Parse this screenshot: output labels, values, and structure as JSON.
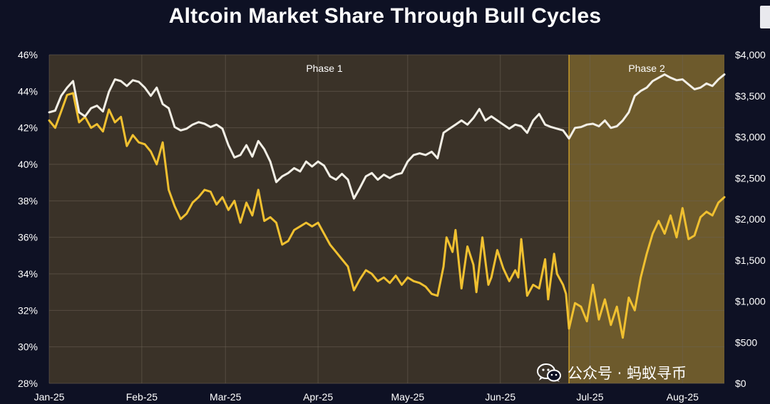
{
  "title": "Altcoin Market Share Through Bull Cycles",
  "watermark": {
    "text": "公众号 · 蚂蚁寻币",
    "icon": "wechat-icon"
  },
  "colors": {
    "background": "#0e1124",
    "plot_background": "#3a3228",
    "phase2_background": "#6d5a2c",
    "phase2_border": "#c89b2a",
    "grid": "#6b6356",
    "altcoin_share_line": "#f0c030",
    "price_line": "#f2efe6"
  },
  "chart_data": {
    "type": "line",
    "title": "Altcoin Market Share Through Bull Cycles",
    "x_axis": {
      "tick_labels": [
        "Jan-25",
        "Feb-25",
        "Mar-25",
        "Apr-25",
        "May-25",
        "Jun-25",
        "Jul-25",
        "Aug-25"
      ],
      "range": [
        "2025-01-01",
        "2025-08-15"
      ]
    },
    "y_left": {
      "tick_labels": [
        "28%",
        "30%",
        "32%",
        "34%",
        "36%",
        "38%",
        "40%",
        "42%",
        "44%",
        "46%"
      ],
      "range": [
        28,
        46
      ]
    },
    "y_right": {
      "tick_labels": [
        "$0",
        "$500",
        "$1,000",
        "$1,500",
        "$2,000",
        "$2,500",
        "$3,000",
        "$3,500",
        "$4,000"
      ],
      "range": [
        0,
        4000
      ]
    },
    "grid": true,
    "phases": [
      {
        "label": "Phase 1",
        "start": "2025-01-01",
        "end": "2025-06-24"
      },
      {
        "label": "Phase 2",
        "start": "2025-06-24",
        "end": "2025-08-15"
      }
    ],
    "series": [
      {
        "axis": "left",
        "color": "#f0c030",
        "points": [
          [
            "2025-01-01",
            42.4
          ],
          [
            "2025-01-03",
            42.0
          ],
          [
            "2025-01-05",
            42.9
          ],
          [
            "2025-01-07",
            43.8
          ],
          [
            "2025-01-09",
            43.9
          ],
          [
            "2025-01-11",
            42.3
          ],
          [
            "2025-01-13",
            42.6
          ],
          [
            "2025-01-15",
            42.0
          ],
          [
            "2025-01-17",
            42.2
          ],
          [
            "2025-01-19",
            41.8
          ],
          [
            "2025-01-21",
            43.0
          ],
          [
            "2025-01-23",
            42.3
          ],
          [
            "2025-01-25",
            42.6
          ],
          [
            "2025-01-27",
            41.0
          ],
          [
            "2025-01-29",
            41.6
          ],
          [
            "2025-01-31",
            41.2
          ],
          [
            "2025-02-02",
            41.1
          ],
          [
            "2025-02-04",
            40.7
          ],
          [
            "2025-02-06",
            40.0
          ],
          [
            "2025-02-08",
            41.2
          ],
          [
            "2025-02-10",
            38.6
          ],
          [
            "2025-02-12",
            37.7
          ],
          [
            "2025-02-14",
            37.0
          ],
          [
            "2025-02-16",
            37.3
          ],
          [
            "2025-02-18",
            37.9
          ],
          [
            "2025-02-20",
            38.2
          ],
          [
            "2025-02-22",
            38.6
          ],
          [
            "2025-02-24",
            38.5
          ],
          [
            "2025-02-26",
            37.8
          ],
          [
            "2025-02-28",
            38.2
          ],
          [
            "2025-03-02",
            37.5
          ],
          [
            "2025-03-04",
            38.0
          ],
          [
            "2025-03-06",
            36.8
          ],
          [
            "2025-03-08",
            37.9
          ],
          [
            "2025-03-10",
            37.2
          ],
          [
            "2025-03-12",
            38.6
          ],
          [
            "2025-03-14",
            36.9
          ],
          [
            "2025-03-16",
            37.1
          ],
          [
            "2025-03-18",
            36.8
          ],
          [
            "2025-03-20",
            35.6
          ],
          [
            "2025-03-22",
            35.8
          ],
          [
            "2025-03-24",
            36.4
          ],
          [
            "2025-03-26",
            36.6
          ],
          [
            "2025-03-28",
            36.8
          ],
          [
            "2025-03-30",
            36.6
          ],
          [
            "2025-04-01",
            36.8
          ],
          [
            "2025-04-03",
            36.2
          ],
          [
            "2025-04-05",
            35.6
          ],
          [
            "2025-04-07",
            35.2
          ],
          [
            "2025-04-09",
            34.8
          ],
          [
            "2025-04-11",
            34.4
          ],
          [
            "2025-04-13",
            33.1
          ],
          [
            "2025-04-15",
            33.7
          ],
          [
            "2025-04-17",
            34.2
          ],
          [
            "2025-04-19",
            34.0
          ],
          [
            "2025-04-21",
            33.6
          ],
          [
            "2025-04-23",
            33.8
          ],
          [
            "2025-04-25",
            33.5
          ],
          [
            "2025-04-27",
            33.9
          ],
          [
            "2025-04-29",
            33.4
          ],
          [
            "2025-05-01",
            33.8
          ],
          [
            "2025-05-03",
            33.6
          ],
          [
            "2025-05-05",
            33.5
          ],
          [
            "2025-05-07",
            33.3
          ],
          [
            "2025-05-09",
            32.9
          ],
          [
            "2025-05-11",
            32.8
          ],
          [
            "2025-05-13",
            34.4
          ],
          [
            "2025-05-14",
            36.0
          ],
          [
            "2025-05-16",
            35.2
          ],
          [
            "2025-05-17",
            36.4
          ],
          [
            "2025-05-19",
            33.2
          ],
          [
            "2025-05-21",
            35.5
          ],
          [
            "2025-05-23",
            34.5
          ],
          [
            "2025-05-24",
            33.0
          ],
          [
            "2025-05-26",
            36.0
          ],
          [
            "2025-05-28",
            33.4
          ],
          [
            "2025-05-29",
            33.8
          ],
          [
            "2025-05-31",
            35.3
          ],
          [
            "2025-06-02",
            34.3
          ],
          [
            "2025-06-04",
            33.6
          ],
          [
            "2025-06-06",
            34.2
          ],
          [
            "2025-06-07",
            33.8
          ],
          [
            "2025-06-08",
            35.9
          ],
          [
            "2025-06-10",
            32.8
          ],
          [
            "2025-06-12",
            33.4
          ],
          [
            "2025-06-14",
            33.2
          ],
          [
            "2025-06-16",
            34.8
          ],
          [
            "2025-06-17",
            32.6
          ],
          [
            "2025-06-19",
            35.1
          ],
          [
            "2025-06-20",
            34.0
          ],
          [
            "2025-06-22",
            33.4
          ],
          [
            "2025-06-23",
            32.9
          ],
          [
            "2025-06-24",
            31.0
          ],
          [
            "2025-06-26",
            32.4
          ],
          [
            "2025-06-28",
            32.2
          ],
          [
            "2025-06-30",
            31.4
          ],
          [
            "2025-07-02",
            33.4
          ],
          [
            "2025-07-04",
            31.5
          ],
          [
            "2025-07-06",
            32.6
          ],
          [
            "2025-07-08",
            31.2
          ],
          [
            "2025-07-10",
            32.2
          ],
          [
            "2025-07-12",
            30.5
          ],
          [
            "2025-07-14",
            32.7
          ],
          [
            "2025-07-16",
            32.0
          ],
          [
            "2025-07-18",
            33.8
          ],
          [
            "2025-07-20",
            35.1
          ],
          [
            "2025-07-22",
            36.2
          ],
          [
            "2025-07-24",
            36.9
          ],
          [
            "2025-07-26",
            36.2
          ],
          [
            "2025-07-28",
            37.2
          ],
          [
            "2025-07-30",
            36.0
          ],
          [
            "2025-08-01",
            37.6
          ],
          [
            "2025-08-03",
            35.9
          ],
          [
            "2025-08-05",
            36.1
          ],
          [
            "2025-08-07",
            37.1
          ],
          [
            "2025-08-09",
            37.4
          ],
          [
            "2025-08-11",
            37.2
          ],
          [
            "2025-08-13",
            37.9
          ],
          [
            "2025-08-15",
            38.2
          ]
        ]
      },
      {
        "axis": "right",
        "color": "#f2efe6",
        "points": [
          [
            "2025-01-01",
            3300
          ],
          [
            "2025-01-03",
            3320
          ],
          [
            "2025-01-05",
            3500
          ],
          [
            "2025-01-07",
            3600
          ],
          [
            "2025-01-09",
            3680
          ],
          [
            "2025-01-11",
            3300
          ],
          [
            "2025-01-13",
            3250
          ],
          [
            "2025-01-15",
            3350
          ],
          [
            "2025-01-17",
            3380
          ],
          [
            "2025-01-19",
            3310
          ],
          [
            "2025-01-21",
            3550
          ],
          [
            "2025-01-23",
            3700
          ],
          [
            "2025-01-25",
            3680
          ],
          [
            "2025-01-27",
            3620
          ],
          [
            "2025-01-29",
            3690
          ],
          [
            "2025-01-31",
            3670
          ],
          [
            "2025-02-02",
            3600
          ],
          [
            "2025-02-04",
            3500
          ],
          [
            "2025-02-06",
            3600
          ],
          [
            "2025-02-08",
            3400
          ],
          [
            "2025-02-10",
            3350
          ],
          [
            "2025-02-12",
            3120
          ],
          [
            "2025-02-14",
            3080
          ],
          [
            "2025-02-16",
            3100
          ],
          [
            "2025-02-18",
            3150
          ],
          [
            "2025-02-20",
            3180
          ],
          [
            "2025-02-22",
            3160
          ],
          [
            "2025-02-24",
            3120
          ],
          [
            "2025-02-26",
            3150
          ],
          [
            "2025-02-28",
            3100
          ],
          [
            "2025-03-02",
            2900
          ],
          [
            "2025-03-04",
            2750
          ],
          [
            "2025-03-06",
            2780
          ],
          [
            "2025-03-08",
            2900
          ],
          [
            "2025-03-10",
            2760
          ],
          [
            "2025-03-12",
            2950
          ],
          [
            "2025-03-14",
            2850
          ],
          [
            "2025-03-16",
            2700
          ],
          [
            "2025-03-18",
            2450
          ],
          [
            "2025-03-20",
            2520
          ],
          [
            "2025-03-22",
            2560
          ],
          [
            "2025-03-24",
            2620
          ],
          [
            "2025-03-26",
            2580
          ],
          [
            "2025-03-28",
            2700
          ],
          [
            "2025-03-30",
            2640
          ],
          [
            "2025-04-01",
            2700
          ],
          [
            "2025-04-03",
            2650
          ],
          [
            "2025-04-05",
            2520
          ],
          [
            "2025-04-07",
            2480
          ],
          [
            "2025-04-09",
            2550
          ],
          [
            "2025-04-11",
            2480
          ],
          [
            "2025-04-13",
            2250
          ],
          [
            "2025-04-15",
            2380
          ],
          [
            "2025-04-17",
            2520
          ],
          [
            "2025-04-19",
            2560
          ],
          [
            "2025-04-21",
            2480
          ],
          [
            "2025-04-23",
            2540
          ],
          [
            "2025-04-25",
            2500
          ],
          [
            "2025-04-27",
            2540
          ],
          [
            "2025-04-29",
            2560
          ],
          [
            "2025-05-01",
            2700
          ],
          [
            "2025-05-03",
            2780
          ],
          [
            "2025-05-05",
            2800
          ],
          [
            "2025-05-07",
            2780
          ],
          [
            "2025-05-09",
            2820
          ],
          [
            "2025-05-11",
            2740
          ],
          [
            "2025-05-13",
            3050
          ],
          [
            "2025-05-15",
            3100
          ],
          [
            "2025-05-17",
            3150
          ],
          [
            "2025-05-19",
            3200
          ],
          [
            "2025-05-21",
            3150
          ],
          [
            "2025-05-23",
            3230
          ],
          [
            "2025-05-25",
            3340
          ],
          [
            "2025-05-27",
            3200
          ],
          [
            "2025-05-29",
            3250
          ],
          [
            "2025-05-31",
            3200
          ],
          [
            "2025-06-02",
            3150
          ],
          [
            "2025-06-04",
            3100
          ],
          [
            "2025-06-06",
            3150
          ],
          [
            "2025-06-08",
            3130
          ],
          [
            "2025-06-10",
            3050
          ],
          [
            "2025-06-12",
            3200
          ],
          [
            "2025-06-14",
            3280
          ],
          [
            "2025-06-16",
            3150
          ],
          [
            "2025-06-18",
            3120
          ],
          [
            "2025-06-20",
            3100
          ],
          [
            "2025-06-22",
            3080
          ],
          [
            "2025-06-24",
            2980
          ],
          [
            "2025-06-26",
            3110
          ],
          [
            "2025-06-28",
            3120
          ],
          [
            "2025-06-30",
            3150
          ],
          [
            "2025-07-02",
            3160
          ],
          [
            "2025-07-04",
            3130
          ],
          [
            "2025-07-06",
            3200
          ],
          [
            "2025-07-08",
            3110
          ],
          [
            "2025-07-10",
            3130
          ],
          [
            "2025-07-12",
            3200
          ],
          [
            "2025-07-14",
            3300
          ],
          [
            "2025-07-16",
            3500
          ],
          [
            "2025-07-18",
            3560
          ],
          [
            "2025-07-20",
            3600
          ],
          [
            "2025-07-22",
            3680
          ],
          [
            "2025-07-24",
            3720
          ],
          [
            "2025-07-26",
            3760
          ],
          [
            "2025-07-28",
            3720
          ],
          [
            "2025-07-30",
            3690
          ],
          [
            "2025-08-01",
            3700
          ],
          [
            "2025-08-03",
            3640
          ],
          [
            "2025-08-05",
            3580
          ],
          [
            "2025-08-07",
            3600
          ],
          [
            "2025-08-09",
            3650
          ],
          [
            "2025-08-11",
            3620
          ],
          [
            "2025-08-13",
            3700
          ],
          [
            "2025-08-15",
            3760
          ]
        ]
      }
    ]
  }
}
